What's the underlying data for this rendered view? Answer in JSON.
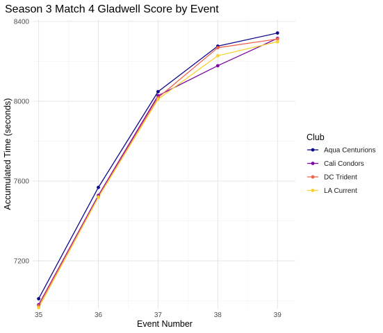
{
  "chart_data": {
    "type": "line",
    "title": "Season 3 Match 4 Gladwell Score by Event",
    "xlabel": "Event Number",
    "ylabel": "Accumulated Time (seconds)",
    "x": [
      35,
      36,
      37,
      38,
      39
    ],
    "xlim": [
      34.9,
      39.3
    ],
    "ylim": [
      6960,
      8410
    ],
    "yticks": [
      7200,
      7600,
      8000,
      8400
    ],
    "grid": true,
    "legend": {
      "title": "Club",
      "position": "right"
    },
    "series": [
      {
        "name": "Aqua Centurions",
        "color": "#0d0887",
        "values": [
          7010,
          7568,
          8048,
          8276,
          8342
        ]
      },
      {
        "name": "Cali Condors",
        "color": "#7e03a8",
        "values": [
          6980,
          7528,
          8028,
          8178,
          8315
        ]
      },
      {
        "name": "DC Trident",
        "color": "#f0634e",
        "values": [
          6975,
          7522,
          8018,
          8268,
          8312
        ]
      },
      {
        "name": "LA Current",
        "color": "#f8d030",
        "values": [
          6965,
          7518,
          8010,
          8228,
          8298
        ]
      }
    ]
  }
}
